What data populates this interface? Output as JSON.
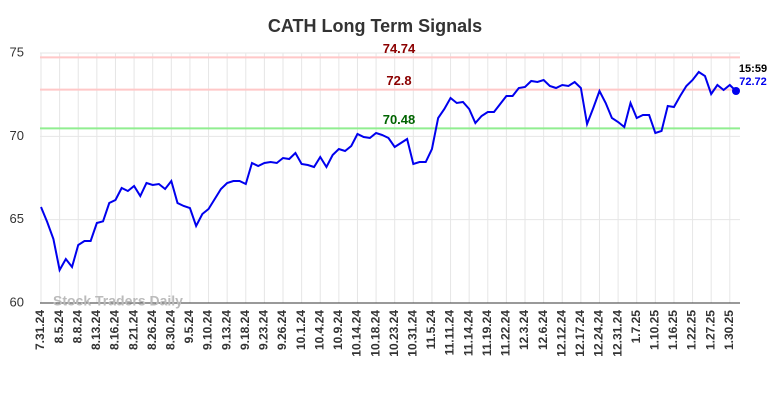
{
  "chart_data": {
    "type": "line",
    "title": "CATH Long Term Signals",
    "watermark": "Stock Traders Daily",
    "categories": [
      "7.31.24",
      null,
      null,
      "8.5.24",
      null,
      null,
      "8.8.24",
      null,
      null,
      "8.13.24",
      null,
      null,
      "8.16.24",
      null,
      null,
      "8.21.24",
      null,
      null,
      "8.26.24",
      null,
      null,
      "8.30.24",
      null,
      null,
      "9.5.24",
      null,
      null,
      "9.10.24",
      null,
      null,
      "9.13.24",
      null,
      null,
      "9.18.24",
      null,
      null,
      "9.23.24",
      null,
      null,
      "9.26.24",
      null,
      null,
      "10.1.24",
      null,
      null,
      "10.4.24",
      null,
      null,
      "10.9.24",
      null,
      null,
      "10.14.24",
      null,
      null,
      "10.18.24",
      null,
      null,
      "10.23.24",
      null,
      null,
      "10.31.24",
      null,
      null,
      "11.5.24",
      null,
      null,
      "11.11.24",
      null,
      null,
      "11.14.24",
      null,
      null,
      "11.19.24",
      null,
      null,
      "11.22.24",
      null,
      null,
      "12.3.24",
      null,
      null,
      "12.6.24",
      null,
      null,
      "12.12.24",
      null,
      null,
      "12.17.24",
      null,
      null,
      "12.24.24",
      null,
      null,
      "12.31.24",
      null,
      null,
      "1.7.25",
      null,
      null,
      "1.10.25",
      null,
      null,
      "1.16.25",
      null,
      null,
      "1.22.25",
      null,
      null,
      "1.27.25",
      null,
      null,
      "1.30.25",
      null
    ],
    "series": [
      {
        "name": "CATH",
        "color": "#0000ee",
        "values": [
          65.76,
          64.86,
          63.84,
          61.98,
          62.64,
          62.16,
          63.48,
          63.72,
          63.72,
          64.8,
          64.9,
          66.0,
          66.18,
          66.9,
          66.72,
          67.02,
          66.42,
          67.2,
          67.08,
          67.14,
          66.84,
          67.32,
          66.0,
          65.82,
          65.7,
          64.62,
          65.34,
          65.64,
          66.24,
          66.84,
          67.2,
          67.32,
          67.32,
          67.14,
          68.4,
          68.22,
          68.4,
          68.46,
          68.4,
          68.7,
          68.64,
          69.0,
          68.34,
          68.28,
          68.16,
          68.76,
          68.16,
          68.88,
          69.24,
          69.12,
          69.42,
          70.14,
          69.96,
          69.9,
          70.2,
          70.08,
          69.9,
          69.36,
          69.6,
          69.84,
          68.34,
          68.46,
          68.46,
          69.24,
          71.1,
          71.64,
          72.3,
          72.0,
          72.06,
          71.64,
          70.8,
          71.22,
          71.46,
          71.46,
          71.94,
          72.42,
          72.42,
          72.9,
          72.96,
          73.32,
          73.26,
          73.38,
          73.02,
          72.9,
          73.08,
          73.02,
          73.26,
          72.9,
          70.74,
          71.7,
          72.72,
          72.0,
          71.1,
          70.86,
          70.56,
          72.0,
          71.1,
          71.28,
          71.28,
          70.2,
          70.32,
          71.82,
          71.76,
          72.42,
          73.02,
          73.38,
          73.86,
          73.62,
          72.54,
          73.08,
          72.78,
          73.08,
          72.72
        ]
      }
    ],
    "last_time": "15:59",
    "reference_lines": [
      {
        "value": 74.74,
        "color": "#ffc8c8",
        "label_color": "#8b0000"
      },
      {
        "value": 72.8,
        "color": "#ffc8c8",
        "label_color": "#8b0000"
      },
      {
        "value": 70.48,
        "color": "#90ee90",
        "label_color": "#006400"
      }
    ],
    "ylim": [
      60,
      75
    ],
    "yticks": [
      60,
      65,
      70,
      75
    ],
    "grid": true
  }
}
